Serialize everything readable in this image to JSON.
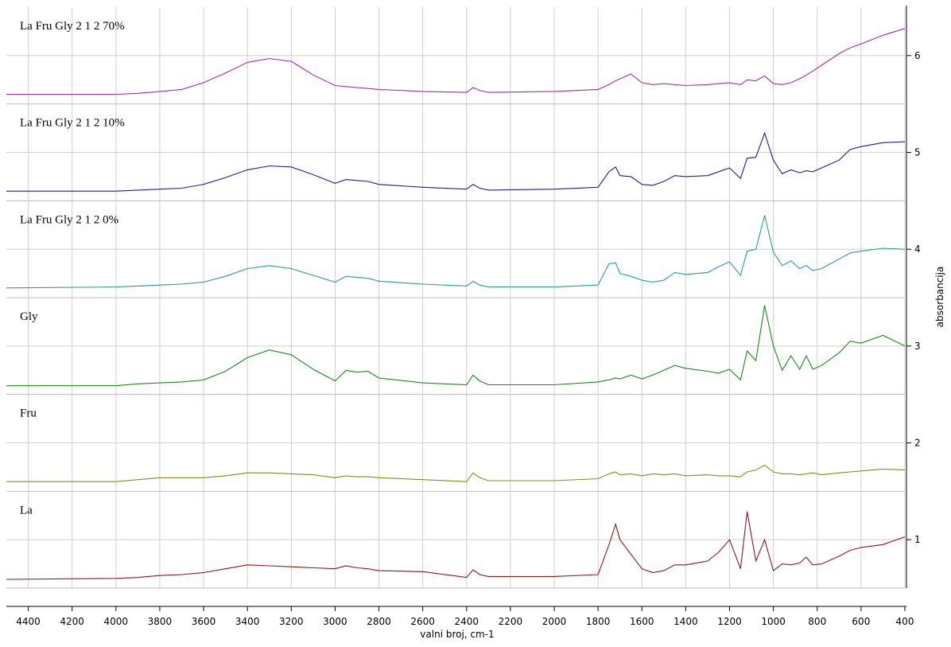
{
  "chart_data": {
    "type": "line",
    "x_label": "valni broj, cm-1",
    "y_label": "absorbancija",
    "xlim": [
      4500,
      400
    ],
    "ylim": [
      0.5,
      6.5
    ],
    "xticks": [
      4400,
      4200,
      4000,
      3800,
      3600,
      3400,
      3200,
      3000,
      2800,
      2600,
      2400,
      2200,
      2000,
      1800,
      1600,
      1400,
      1200,
      1000,
      800,
      600,
      400
    ],
    "yticks": [
      1,
      2,
      3,
      4,
      5,
      6
    ],
    "separators": [
      1.5,
      2.5,
      3.5,
      4.5,
      5.5
    ],
    "grid": true,
    "x": [
      4500,
      4000,
      3900,
      3800,
      3700,
      3600,
      3500,
      3400,
      3300,
      3200,
      3100,
      3000,
      2950,
      2900,
      2850,
      2800,
      2600,
      2400,
      2370,
      2340,
      2300,
      2000,
      1800,
      1750,
      1720,
      1700,
      1650,
      1600,
      1550,
      1500,
      1450,
      1400,
      1300,
      1250,
      1200,
      1150,
      1120,
      1080,
      1040,
      1000,
      960,
      920,
      880,
      850,
      820,
      780,
      700,
      650,
      600,
      500,
      400
    ],
    "series": [
      {
        "name": "La",
        "color": "#8b1a1a",
        "values": [
          0.59,
          0.6,
          0.61,
          0.63,
          0.64,
          0.66,
          0.7,
          0.74,
          0.73,
          0.72,
          0.71,
          0.7,
          0.73,
          0.71,
          0.7,
          0.68,
          0.67,
          0.61,
          0.69,
          0.64,
          0.62,
          0.62,
          0.64,
          0.95,
          1.16,
          1.0,
          0.85,
          0.7,
          0.66,
          0.68,
          0.74,
          0.74,
          0.78,
          0.87,
          1.0,
          0.7,
          1.29,
          0.78,
          1.0,
          0.68,
          0.75,
          0.74,
          0.76,
          0.82,
          0.74,
          0.75,
          0.83,
          0.89,
          0.92,
          0.95,
          1.03
        ]
      },
      {
        "name": "Fru",
        "color": "#8b8b1a",
        "values": [
          1.6,
          1.6,
          1.62,
          1.64,
          1.64,
          1.64,
          1.66,
          1.69,
          1.69,
          1.68,
          1.67,
          1.64,
          1.66,
          1.65,
          1.65,
          1.64,
          1.62,
          1.6,
          1.69,
          1.64,
          1.61,
          1.61,
          1.63,
          1.68,
          1.7,
          1.67,
          1.68,
          1.66,
          1.68,
          1.67,
          1.68,
          1.66,
          1.67,
          1.66,
          1.66,
          1.65,
          1.7,
          1.72,
          1.77,
          1.7,
          1.68,
          1.68,
          1.67,
          1.68,
          1.69,
          1.67,
          1.69,
          1.7,
          1.71,
          1.73,
          1.72
        ]
      },
      {
        "name": "Gly",
        "color": "#1a8a1a",
        "values": [
          2.59,
          2.59,
          2.61,
          2.62,
          2.63,
          2.65,
          2.74,
          2.88,
          2.96,
          2.91,
          2.76,
          2.64,
          2.75,
          2.73,
          2.74,
          2.67,
          2.62,
          2.6,
          2.7,
          2.64,
          2.6,
          2.6,
          2.63,
          2.65,
          2.67,
          2.66,
          2.7,
          2.66,
          2.7,
          2.75,
          2.8,
          2.77,
          2.74,
          2.72,
          2.76,
          2.65,
          2.95,
          2.85,
          3.42,
          3.0,
          2.75,
          2.9,
          2.76,
          2.9,
          2.76,
          2.8,
          2.93,
          3.05,
          3.03,
          3.11,
          3.0
        ]
      },
      {
        "name": "La Fru Gly 2 1 2 0%",
        "color": "#2a9a9a",
        "values": [
          3.6,
          3.61,
          3.62,
          3.63,
          3.64,
          3.66,
          3.72,
          3.8,
          3.83,
          3.8,
          3.73,
          3.66,
          3.72,
          3.71,
          3.7,
          3.67,
          3.64,
          3.62,
          3.67,
          3.63,
          3.61,
          3.61,
          3.63,
          3.85,
          3.86,
          3.75,
          3.72,
          3.68,
          3.66,
          3.68,
          3.76,
          3.74,
          3.76,
          3.82,
          3.87,
          3.73,
          3.98,
          4.0,
          4.35,
          3.97,
          3.83,
          3.88,
          3.8,
          3.83,
          3.78,
          3.8,
          3.9,
          3.96,
          3.98,
          4.01,
          4.0
        ]
      },
      {
        "name": "La Fru Gly 2 1 2 10%",
        "color": "#1f1f8f",
        "values": [
          4.6,
          4.6,
          4.61,
          4.62,
          4.63,
          4.67,
          4.74,
          4.82,
          4.86,
          4.85,
          4.77,
          4.68,
          4.72,
          4.71,
          4.7,
          4.67,
          4.64,
          4.62,
          4.67,
          4.63,
          4.61,
          4.62,
          4.64,
          4.8,
          4.85,
          4.76,
          4.75,
          4.67,
          4.66,
          4.7,
          4.76,
          4.75,
          4.76,
          4.8,
          4.84,
          4.73,
          4.94,
          4.95,
          5.2,
          4.92,
          4.78,
          4.82,
          4.79,
          4.81,
          4.8,
          4.84,
          4.92,
          5.03,
          5.06,
          5.1,
          5.11
        ]
      },
      {
        "name": "La Fru Gly 2 1 2 70%",
        "color": "#a0309f",
        "values": [
          5.6,
          5.6,
          5.61,
          5.63,
          5.65,
          5.72,
          5.82,
          5.93,
          5.97,
          5.94,
          5.8,
          5.69,
          5.68,
          5.67,
          5.66,
          5.65,
          5.63,
          5.62,
          5.67,
          5.64,
          5.62,
          5.63,
          5.65,
          5.7,
          5.74,
          5.76,
          5.81,
          5.72,
          5.7,
          5.71,
          5.7,
          5.69,
          5.7,
          5.71,
          5.72,
          5.7,
          5.75,
          5.74,
          5.79,
          5.71,
          5.7,
          5.72,
          5.76,
          5.8,
          5.84,
          5.9,
          6.02,
          6.08,
          6.12,
          6.21,
          6.28
        ]
      }
    ]
  }
}
